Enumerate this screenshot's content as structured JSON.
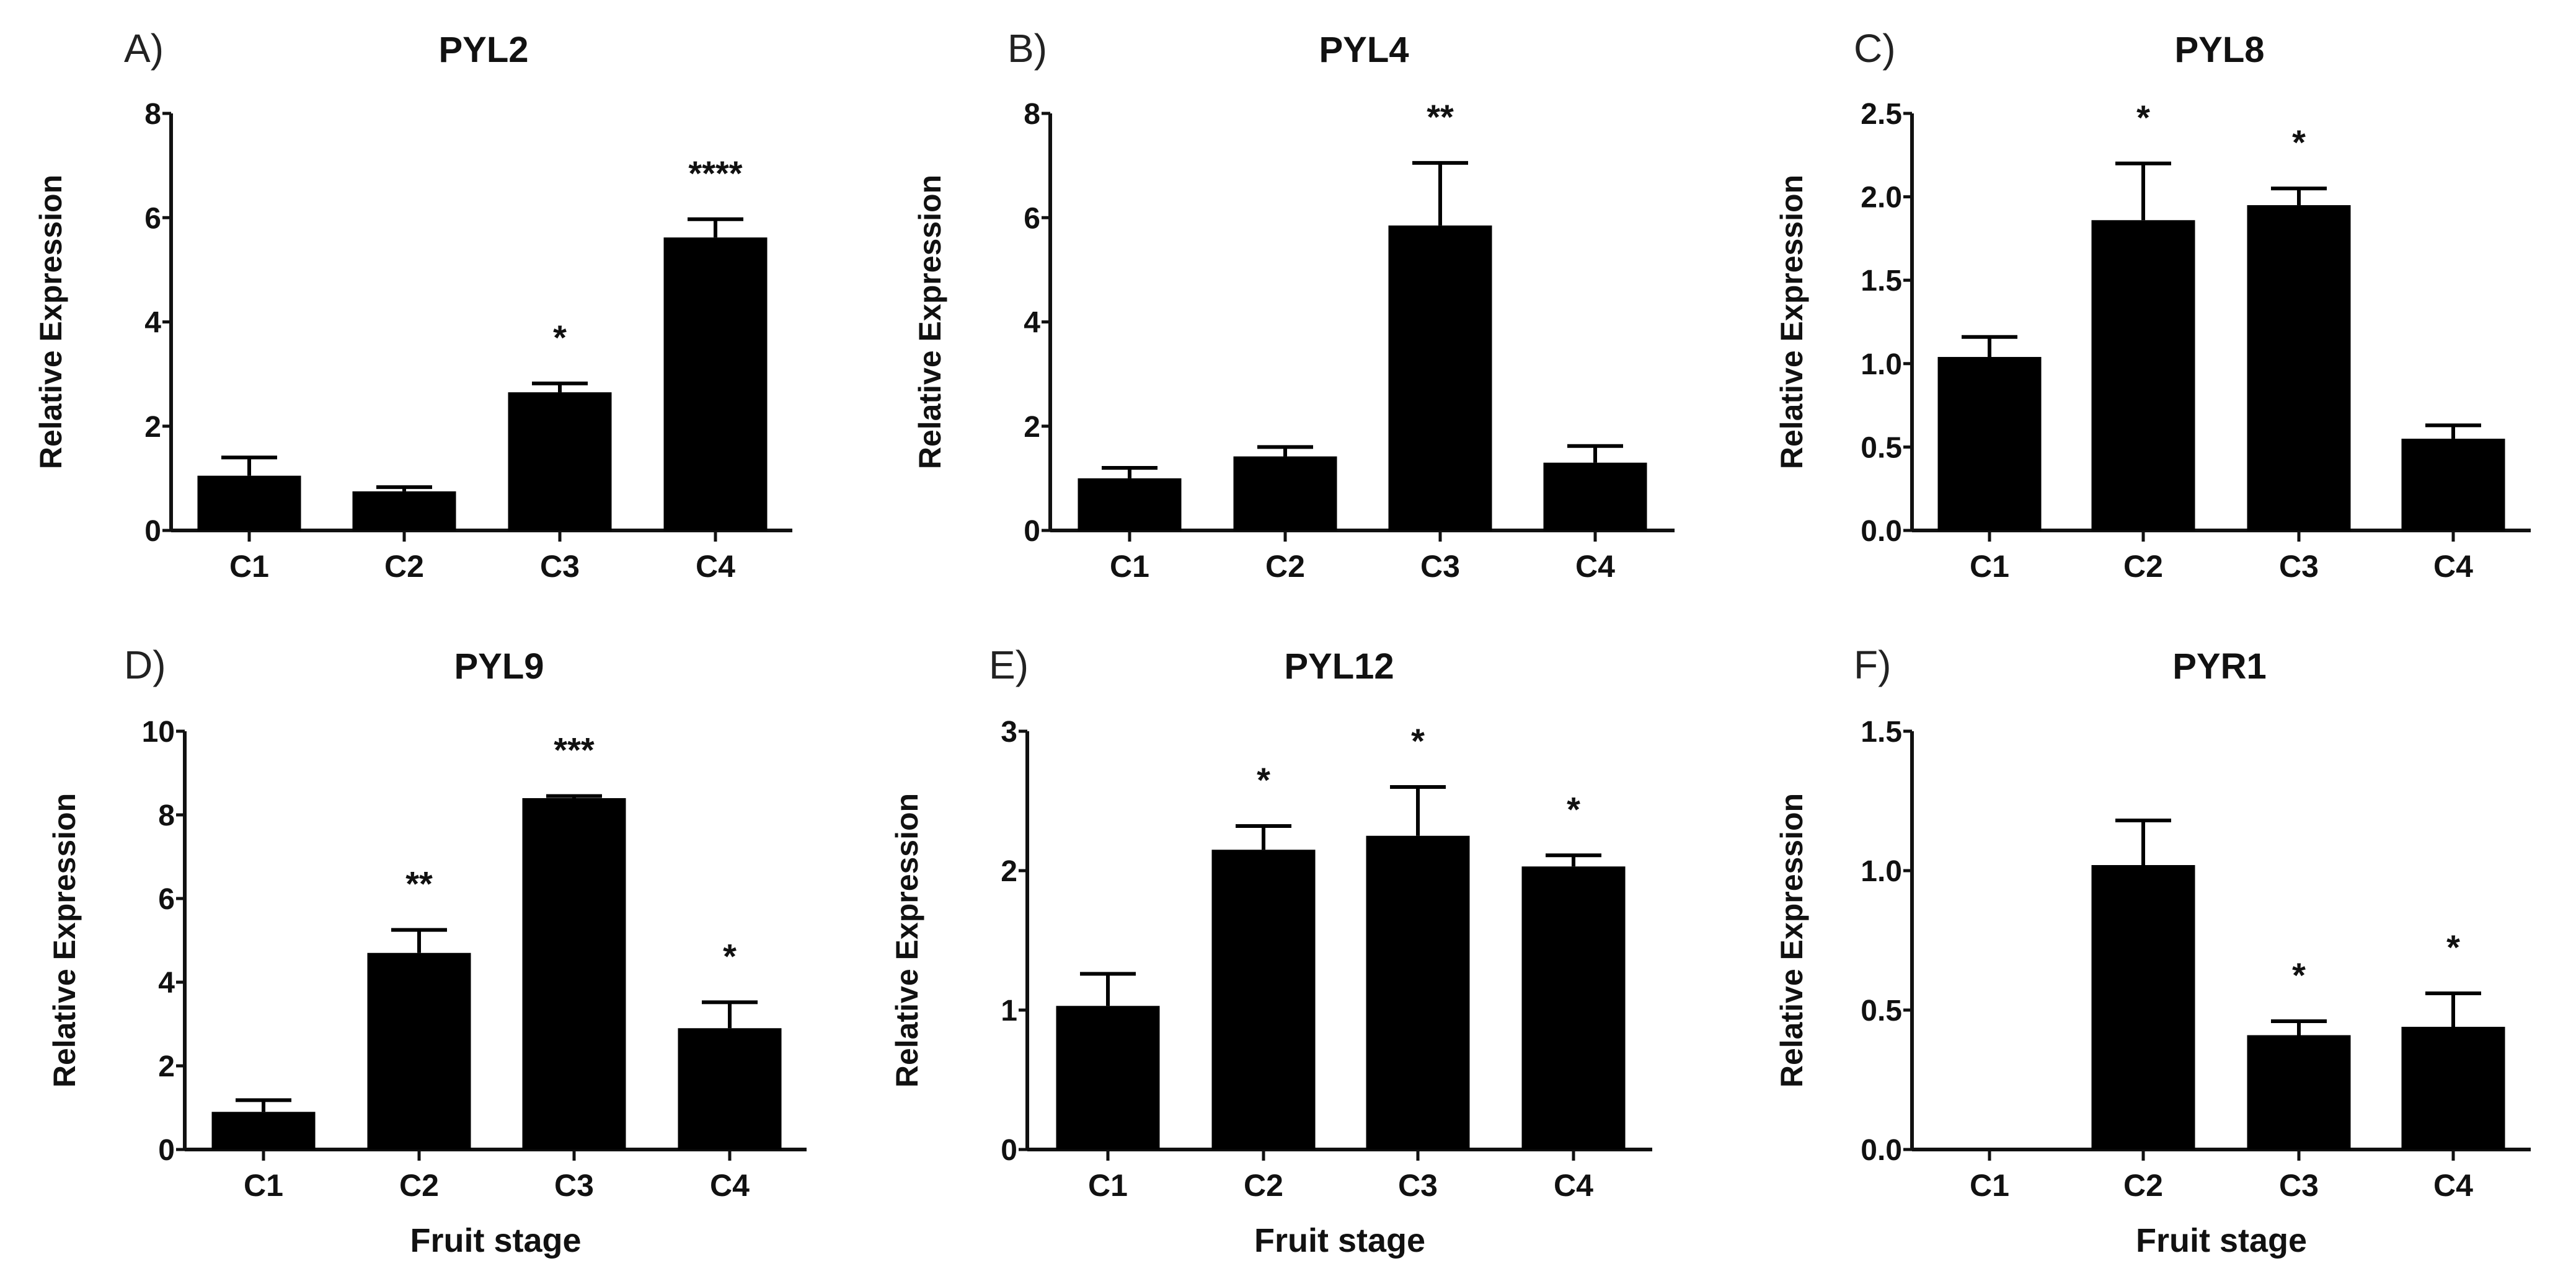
{
  "chart_data": [
    {
      "type": "bar",
      "panel": "A)",
      "title": "PYL2",
      "ylabel": "Relative Expression",
      "xlabel": "",
      "categories": [
        "C1",
        "C2",
        "C3",
        "C4"
      ],
      "values": [
        1.05,
        0.75,
        2.65,
        5.62
      ],
      "errors": [
        0.35,
        0.08,
        0.17,
        0.35
      ],
      "significance": [
        "",
        "",
        "*",
        "****"
      ],
      "ylim": [
        0,
        8
      ],
      "yticks": [
        "0",
        "2",
        "4",
        "6",
        "8"
      ],
      "ytick_values": [
        0,
        2,
        4,
        6,
        8
      ]
    },
    {
      "type": "bar",
      "panel": "B)",
      "title": "PYL4",
      "ylabel": "Relative Expression",
      "xlabel": "",
      "categories": [
        "C1",
        "C2",
        "C3",
        "C4"
      ],
      "values": [
        1.0,
        1.42,
        5.85,
        1.3
      ],
      "errors": [
        0.2,
        0.18,
        1.2,
        0.32
      ],
      "significance": [
        "",
        "",
        "**",
        ""
      ],
      "ylim": [
        0,
        8
      ],
      "yticks": [
        "0",
        "2",
        "4",
        "6",
        "8"
      ],
      "ytick_values": [
        0,
        2,
        4,
        6,
        8
      ]
    },
    {
      "type": "bar",
      "panel": "C)",
      "title": "PYL8",
      "ylabel": "Relative Expression",
      "xlabel": "",
      "categories": [
        "C1",
        "C2",
        "C3",
        "C4"
      ],
      "values": [
        1.04,
        1.86,
        1.95,
        0.55
      ],
      "errors": [
        0.12,
        0.34,
        0.1,
        0.08
      ],
      "significance": [
        "",
        "*",
        "*",
        ""
      ],
      "ylim": [
        0,
        2.5
      ],
      "yticks": [
        "0.0",
        "0.5",
        "1.0",
        "1.5",
        "2.0",
        "2.5"
      ],
      "ytick_values": [
        0,
        0.5,
        1,
        1.5,
        2,
        2.5
      ]
    },
    {
      "type": "bar",
      "panel": "D)",
      "title": "PYL9",
      "ylabel": "Relative Expression",
      "xlabel": "Fruit stage",
      "categories": [
        "C1",
        "C2",
        "C3",
        "C4"
      ],
      "values": [
        0.9,
        4.7,
        8.4,
        2.9
      ],
      "errors": [
        0.28,
        0.55,
        0.05,
        0.62
      ],
      "significance": [
        "",
        "**",
        "***",
        "*"
      ],
      "ylim": [
        0,
        10
      ],
      "yticks": [
        "0",
        "2",
        "4",
        "6",
        "8",
        "10"
      ],
      "ytick_values": [
        0,
        2,
        4,
        6,
        8,
        10
      ]
    },
    {
      "type": "bar",
      "panel": "E)",
      "title": "PYL12",
      "ylabel": "Relative Expression",
      "xlabel": "Fruit stage",
      "categories": [
        "C1",
        "C2",
        "C3",
        "C4"
      ],
      "values": [
        1.03,
        2.15,
        2.25,
        2.03
      ],
      "errors": [
        0.23,
        0.17,
        0.35,
        0.08
      ],
      "significance": [
        "",
        "*",
        "*",
        "*"
      ],
      "ylim": [
        0,
        3
      ],
      "yticks": [
        "0",
        "1",
        "2",
        "3"
      ],
      "ytick_values": [
        0,
        1,
        2,
        3
      ]
    },
    {
      "type": "bar",
      "panel": "F)",
      "title": "PYR1",
      "ylabel": "Relative Expression",
      "xlabel": "Fruit stage",
      "categories": [
        "C1",
        "C2",
        "C3",
        "C4"
      ],
      "values": [
        0,
        1.02,
        0.41,
        0.44
      ],
      "errors": [
        0,
        0.16,
        0.05,
        0.12
      ],
      "significance": [
        "",
        "",
        "*",
        "*"
      ],
      "ylim": [
        0,
        1.5
      ],
      "yticks": [
        "0.0",
        "0.5",
        "1.0",
        "1.5"
      ],
      "ytick_values": [
        0,
        0.5,
        1,
        1.5
      ]
    }
  ],
  "colors": {
    "bar": "#000000",
    "axis": "#111111"
  }
}
